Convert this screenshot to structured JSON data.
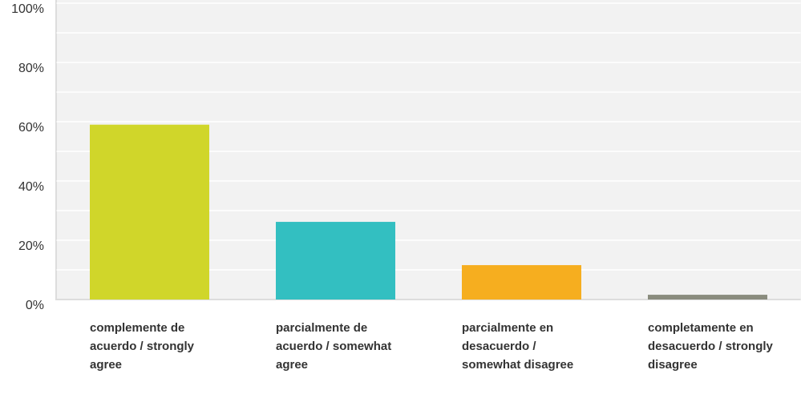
{
  "chart_data": {
    "type": "bar",
    "categories": [
      "complemente de acuerdo / strongly agree",
      "parcialmente de acuerdo / somewhat agree",
      "parcialmente en desacuerdo / somewhat disagree",
      "completamente en desacuerdo / strongly disagree"
    ],
    "values": [
      59,
      26.2,
      11.6,
      1.6
    ],
    "colors": [
      "#d0d62a",
      "#33bfc1",
      "#f6ae1f",
      "#8a8c7e"
    ],
    "ylim": [
      0,
      100
    ],
    "yticks": [
      {
        "value": 0,
        "label": "0%"
      },
      {
        "value": 20,
        "label": "20%"
      },
      {
        "value": 40,
        "label": "40%"
      },
      {
        "value": 60,
        "label": "60%"
      },
      {
        "value": 80,
        "label": "80%"
      },
      {
        "value": 100,
        "label": "100%"
      }
    ],
    "yminorticks": [
      10,
      30,
      50,
      70,
      90
    ],
    "grid": true
  }
}
